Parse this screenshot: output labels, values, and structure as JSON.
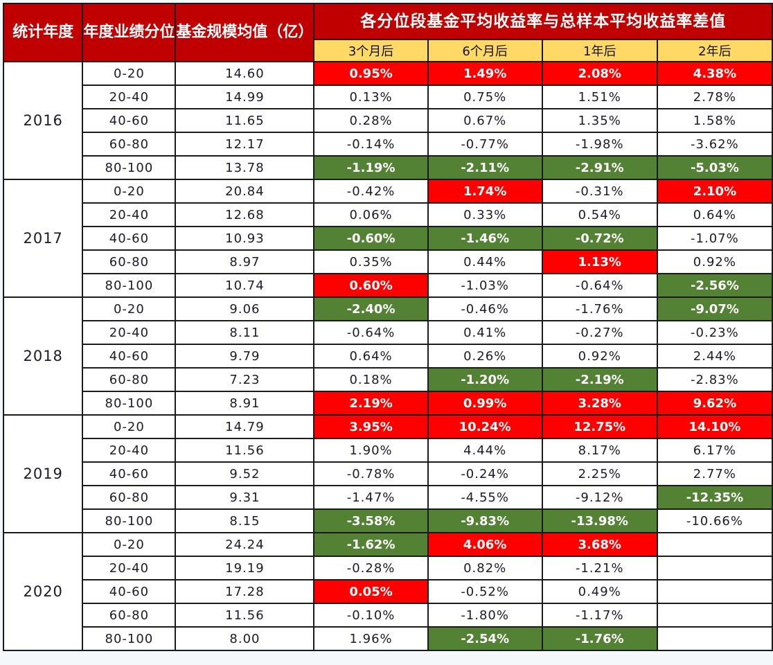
{
  "header": {
    "col_year": "统计年度",
    "col_quantile": "年度业绩分位",
    "col_size": "基金规模均值（亿）",
    "group_title": "各分位段基金平均收益率与总样本平均收益率差值",
    "horizons": [
      "3个月后",
      "6个月后",
      "1年后",
      "2年后"
    ]
  },
  "colors": {
    "header_bg": "#c00000",
    "subheader_bg": "#ffd966",
    "highlight_positive": "#ff0000",
    "highlight_negative": "#548235"
  },
  "chart_data": {
    "type": "table",
    "title": "各分位段基金平均收益率与总样本平均收益率差值",
    "columns": [
      "统计年度",
      "年度业绩分位",
      "基金规模均值（亿）",
      "3个月后",
      "6个月后",
      "1年后",
      "2年后"
    ],
    "groups": [
      {
        "year": "2016",
        "rows": [
          {
            "quantile": "0-20",
            "size": "14.60",
            "values": [
              "0.95%",
              "1.49%",
              "2.08%",
              "4.38%"
            ],
            "highlight": [
              "pos",
              "pos",
              "pos",
              "pos"
            ]
          },
          {
            "quantile": "20-40",
            "size": "14.99",
            "values": [
              "0.13%",
              "0.75%",
              "1.51%",
              "2.78%"
            ],
            "highlight": [
              "",
              "",
              "",
              ""
            ]
          },
          {
            "quantile": "40-60",
            "size": "11.65",
            "values": [
              "0.28%",
              "0.67%",
              "1.35%",
              "1.58%"
            ],
            "highlight": [
              "",
              "",
              "",
              ""
            ]
          },
          {
            "quantile": "60-80",
            "size": "12.17",
            "values": [
              "-0.14%",
              "-0.77%",
              "-1.98%",
              "-3.62%"
            ],
            "highlight": [
              "",
              "",
              "",
              ""
            ]
          },
          {
            "quantile": "80-100",
            "size": "13.78",
            "values": [
              "-1.19%",
              "-2.11%",
              "-2.91%",
              "-5.03%"
            ],
            "highlight": [
              "neg",
              "neg",
              "neg",
              "neg"
            ]
          }
        ]
      },
      {
        "year": "2017",
        "rows": [
          {
            "quantile": "0-20",
            "size": "20.84",
            "values": [
              "-0.42%",
              "1.74%",
              "-0.31%",
              "2.10%"
            ],
            "highlight": [
              "",
              "pos",
              "",
              "pos"
            ]
          },
          {
            "quantile": "20-40",
            "size": "12.68",
            "values": [
              "0.06%",
              "0.33%",
              "0.54%",
              "0.64%"
            ],
            "highlight": [
              "",
              "",
              "",
              ""
            ]
          },
          {
            "quantile": "40-60",
            "size": "10.93",
            "values": [
              "-0.60%",
              "-1.46%",
              "-0.72%",
              "-1.07%"
            ],
            "highlight": [
              "neg",
              "neg",
              "neg",
              ""
            ]
          },
          {
            "quantile": "60-80",
            "size": "8.97",
            "values": [
              "0.35%",
              "0.44%",
              "1.13%",
              "0.92%"
            ],
            "highlight": [
              "",
              "",
              "pos",
              ""
            ]
          },
          {
            "quantile": "80-100",
            "size": "10.74",
            "values": [
              "0.60%",
              "-1.03%",
              "-0.64%",
              "-2.56%"
            ],
            "highlight": [
              "pos",
              "",
              "",
              "neg"
            ]
          }
        ]
      },
      {
        "year": "2018",
        "rows": [
          {
            "quantile": "0-20",
            "size": "9.06",
            "values": [
              "-2.40%",
              "-0.46%",
              "-1.76%",
              "-9.07%"
            ],
            "highlight": [
              "neg",
              "",
              "",
              "neg"
            ]
          },
          {
            "quantile": "20-40",
            "size": "8.11",
            "values": [
              "-0.64%",
              "0.41%",
              "-0.27%",
              "-0.23%"
            ],
            "highlight": [
              "",
              "",
              "",
              ""
            ]
          },
          {
            "quantile": "40-60",
            "size": "9.79",
            "values": [
              "0.64%",
              "0.26%",
              "0.92%",
              "2.44%"
            ],
            "highlight": [
              "",
              "",
              "",
              ""
            ]
          },
          {
            "quantile": "60-80",
            "size": "7.23",
            "values": [
              "0.18%",
              "-1.20%",
              "-2.19%",
              "-2.83%"
            ],
            "highlight": [
              "",
              "neg",
              "neg",
              ""
            ]
          },
          {
            "quantile": "80-100",
            "size": "8.91",
            "values": [
              "2.19%",
              "0.99%",
              "3.28%",
              "9.62%"
            ],
            "highlight": [
              "pos",
              "pos",
              "pos",
              "pos"
            ]
          }
        ]
      },
      {
        "year": "2019",
        "rows": [
          {
            "quantile": "0-20",
            "size": "14.79",
            "values": [
              "3.95%",
              "10.24%",
              "12.75%",
              "14.10%"
            ],
            "highlight": [
              "pos",
              "pos",
              "pos",
              "pos"
            ]
          },
          {
            "quantile": "20-40",
            "size": "11.56",
            "values": [
              "1.90%",
              "4.44%",
              "8.17%",
              "6.17%"
            ],
            "highlight": [
              "",
              "",
              "",
              ""
            ]
          },
          {
            "quantile": "40-60",
            "size": "9.52",
            "values": [
              "-0.78%",
              "-0.24%",
              "2.25%",
              "2.77%"
            ],
            "highlight": [
              "",
              "",
              "",
              ""
            ]
          },
          {
            "quantile": "60-80",
            "size": "9.31",
            "values": [
              "-1.47%",
              "-4.55%",
              "-9.12%",
              "-12.35%"
            ],
            "highlight": [
              "",
              "",
              "",
              "neg"
            ]
          },
          {
            "quantile": "80-100",
            "size": "8.15",
            "values": [
              "-3.58%",
              "-9.83%",
              "-13.98%",
              "-10.66%"
            ],
            "highlight": [
              "neg",
              "neg",
              "neg",
              ""
            ]
          }
        ]
      },
      {
        "year": "2020",
        "rows": [
          {
            "quantile": "0-20",
            "size": "24.24",
            "values": [
              "-1.62%",
              "4.06%",
              "3.68%",
              ""
            ],
            "highlight": [
              "neg",
              "pos",
              "pos",
              "empty"
            ]
          },
          {
            "quantile": "20-40",
            "size": "19.19",
            "values": [
              "-0.28%",
              "0.82%",
              "-1.21%",
              ""
            ],
            "highlight": [
              "",
              "",
              "",
              "empty"
            ]
          },
          {
            "quantile": "40-60",
            "size": "17.28",
            "values": [
              "0.05%",
              "-0.52%",
              "0.49%",
              ""
            ],
            "highlight": [
              "pos",
              "",
              "",
              "empty"
            ]
          },
          {
            "quantile": "60-80",
            "size": "11.56",
            "values": [
              "-0.10%",
              "-1.80%",
              "-1.17%",
              ""
            ],
            "highlight": [
              "",
              "",
              "",
              "empty"
            ]
          },
          {
            "quantile": "80-100",
            "size": "8.00",
            "values": [
              "1.96%",
              "-2.54%",
              "-1.76%",
              ""
            ],
            "highlight": [
              "",
              "neg",
              "neg",
              "empty"
            ]
          }
        ]
      }
    ]
  }
}
